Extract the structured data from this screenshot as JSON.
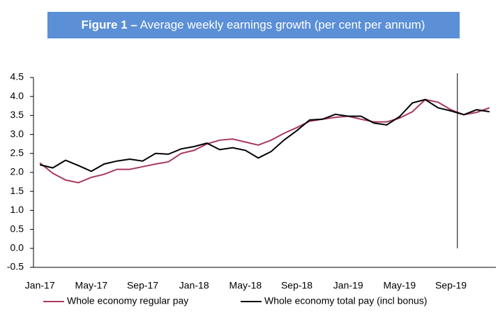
{
  "chart_data": {
    "type": "line",
    "title_bold": "Figure 1 –",
    "title": "Average weekly earnings growth (per cent per annum)",
    "categories": [
      "Jan-17",
      null,
      null,
      null,
      "May-17",
      null,
      null,
      null,
      "Sep-17",
      null,
      null,
      null,
      "Jan-18",
      null,
      null,
      null,
      "May-18",
      null,
      null,
      null,
      "Sep-18",
      null,
      null,
      null,
      "Jan-19",
      null,
      null,
      null,
      "May-19",
      null,
      null,
      null,
      "Sep-19",
      null,
      null,
      null
    ],
    "series": [
      {
        "name": "Whole economy regular pay",
        "color": "#a8385d",
        "values": [
          2.25,
          1.98,
          1.8,
          1.73,
          1.87,
          1.95,
          2.08,
          2.08,
          2.15,
          2.22,
          2.28,
          2.5,
          2.58,
          2.75,
          2.85,
          2.88,
          2.8,
          2.72,
          2.85,
          3.03,
          3.18,
          3.35,
          3.4,
          3.45,
          3.48,
          3.4,
          3.33,
          3.33,
          3.43,
          3.6,
          3.92,
          3.85,
          3.65,
          3.52,
          3.58,
          3.7
        ]
      },
      {
        "name": "Whole economy total pay (incl bonus)",
        "color": "#000000",
        "values": [
          2.2,
          2.12,
          2.32,
          2.18,
          2.03,
          2.22,
          2.3,
          2.35,
          2.3,
          2.5,
          2.48,
          2.62,
          2.68,
          2.77,
          2.6,
          2.65,
          2.58,
          2.38,
          2.55,
          2.85,
          3.1,
          3.38,
          3.4,
          3.53,
          3.48,
          3.48,
          3.3,
          3.25,
          3.47,
          3.83,
          3.92,
          3.7,
          3.62,
          3.52,
          3.65,
          3.6
        ]
      }
    ],
    "ylim": [
      -0.5,
      4.5
    ],
    "yticks": [
      -0.5,
      {
        "value": 0,
        "label": "0.0"
      },
      0.5,
      {
        "value": 1,
        "label": "1.0"
      },
      1.5,
      {
        "value": 2,
        "label": "2.0"
      },
      2.5,
      {
        "value": 3,
        "label": "3.0"
      },
      3.5,
      {
        "value": 4,
        "label": "4.0"
      },
      4.5
    ],
    "vline_after": "Sep-19",
    "grid": false
  }
}
